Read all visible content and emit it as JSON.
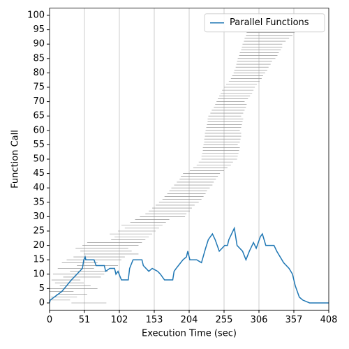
{
  "chart_data": {
    "type": "line",
    "xlabel": "Execution Time (sec)",
    "ylabel": "Function Call",
    "xlim": [
      0,
      408
    ],
    "xticks": [
      0,
      51,
      102,
      153,
      204,
      255,
      306,
      357,
      408
    ],
    "ylim": [
      -2.5,
      102.5
    ],
    "yticks": [
      0,
      5,
      10,
      15,
      20,
      25,
      30,
      35,
      40,
      45,
      50,
      55,
      60,
      65,
      70,
      75,
      80,
      85,
      90,
      95,
      100
    ],
    "grid_x": true,
    "legend": "upper right",
    "intervals": {
      "color": "#808080",
      "start": [
        32,
        0,
        2,
        10,
        0,
        0,
        15,
        8,
        3,
        20,
        5,
        30,
        12,
        40,
        18,
        25,
        35,
        50,
        45,
        38,
        48,
        55,
        90,
        95,
        88,
        100,
        110,
        105,
        118,
        125,
        132,
        140,
        145,
        150,
        155,
        160,
        165,
        168,
        172,
        175,
        178,
        182,
        186,
        190,
        192,
        195,
        205,
        210,
        215,
        218,
        222,
        222,
        223,
        224,
        224,
        225,
        226,
        226,
        227,
        227,
        228,
        229,
        230,
        231,
        231,
        232,
        235,
        237,
        240,
        242,
        244,
        246,
        248,
        250,
        252,
        255,
        258,
        262,
        265,
        267,
        269,
        270,
        272,
        273,
        274,
        275,
        277,
        278,
        280,
        281,
        282,
        284,
        285,
        287,
        288,
        290
      ],
      "end": [
        83,
        30,
        40,
        55,
        35,
        70,
        60,
        50,
        45,
        75,
        80,
        85,
        65,
        100,
        70,
        105,
        110,
        130,
        120,
        115,
        130,
        135,
        140,
        145,
        150,
        155,
        160,
        165,
        170,
        175,
        198,
        200,
        205,
        208,
        212,
        218,
        222,
        225,
        228,
        230,
        234,
        238,
        240,
        243,
        246,
        249,
        255,
        260,
        265,
        268,
        274,
        275,
        276,
        277,
        278,
        275,
        278,
        279,
        280,
        280,
        278,
        280,
        281,
        282,
        283,
        280,
        283,
        285,
        287,
        288,
        285,
        290,
        293,
        296,
        298,
        300,
        303,
        307,
        310,
        312,
        315,
        318,
        320,
        323,
        325,
        330,
        333,
        335,
        338,
        340,
        340,
        345,
        350,
        355,
        358,
        361
      ]
    },
    "series": [
      {
        "name": "Parallel Functions",
        "color": "#1f77b4",
        "x": [
          0,
          1,
          18,
          32,
          48,
          50,
          52,
          53,
          65,
          68,
          80,
          82,
          88,
          95,
          97,
          100,
          105,
          115,
          117,
          122,
          135,
          137,
          145,
          150,
          158,
          162,
          168,
          180,
          182,
          185,
          195,
          200,
          202,
          205,
          215,
          222,
          228,
          232,
          238,
          242,
          248,
          252,
          256,
          260,
          262,
          268,
          270,
          274,
          282,
          287,
          292,
          298,
          302,
          308,
          311,
          316,
          328,
          332,
          342,
          350,
          355,
          359,
          365,
          370,
          380,
          408
        ],
        "values": [
          0,
          1,
          4,
          8,
          12,
          15,
          16,
          15,
          15,
          13,
          13,
          11,
          12,
          12,
          10,
          11,
          8,
          8,
          12,
          15,
          15,
          13,
          11,
          12,
          11,
          10,
          8,
          8,
          11,
          12,
          15,
          16,
          18,
          15,
          15,
          14,
          19,
          22,
          24,
          22,
          18,
          19,
          20,
          20,
          22,
          25,
          26,
          20,
          18,
          15,
          18,
          21,
          19,
          23,
          24,
          20,
          20,
          18,
          14,
          12,
          10,
          6,
          2,
          1,
          0,
          0
        ]
      }
    ]
  }
}
